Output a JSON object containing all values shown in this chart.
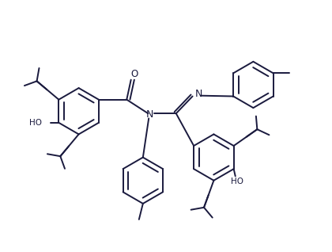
{
  "line_color": "#1a1a3e",
  "bg_color": "#ffffff",
  "lw": 1.4,
  "figsize": [
    4.2,
    3.18
  ],
  "dpi": 100,
  "xlim": [
    0,
    10
  ],
  "ylim": [
    0,
    7.6
  ]
}
